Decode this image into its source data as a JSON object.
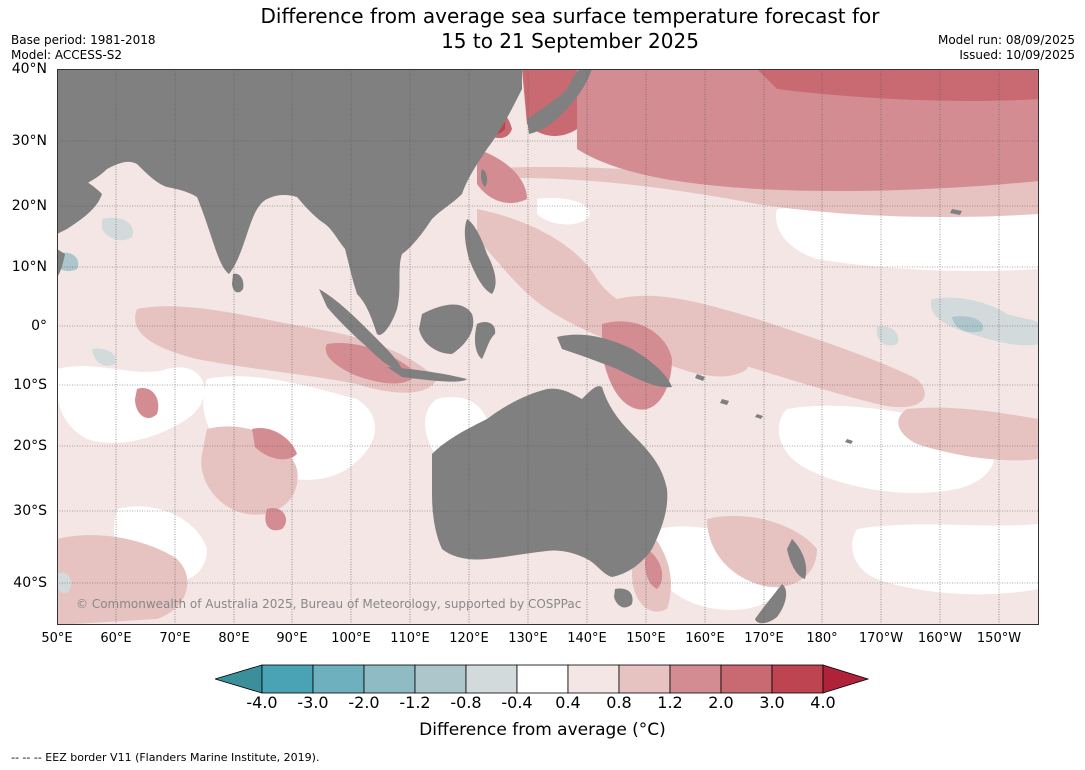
{
  "header": {
    "title_line1": "Difference from average sea surface temperature forecast for",
    "title_line2": "15 to 21 September 2025",
    "base_period": "Base period: 1981-2018",
    "model": "Model: ACCESS-S2",
    "model_run": "Model run: 08/09/2025",
    "issued": "Issued: 10/09/2025"
  },
  "map": {
    "lat_labels": [
      "40°N",
      "30°N",
      "20°N",
      "10°N",
      "0°",
      "10°S",
      "20°S",
      "30°S",
      "40°S"
    ],
    "lon_labels": [
      "50°E",
      "60°E",
      "70°E",
      "80°E",
      "90°E",
      "100°E",
      "110°E",
      "120°E",
      "130°E",
      "140°E",
      "150°E",
      "160°E",
      "170°E",
      "180°",
      "170°W",
      "160°W",
      "150°W"
    ],
    "copyright": "© Commonwealth of Australia 2025, Bureau of Meteorology, supported by COSPPac",
    "land_color": "#808080"
  },
  "colorbar": {
    "ticks": [
      "-4.0",
      "-3.0",
      "-2.0",
      "-1.2",
      "-0.8",
      "-0.4",
      "0.4",
      "0.8",
      "1.2",
      "2.0",
      "3.0",
      "4.0"
    ],
    "colors": [
      "#3a8f9a",
      "#4aa3b4",
      "#6eb0bd",
      "#8fbbc4",
      "#adc6cc",
      "#d3dadc",
      "#ffffff",
      "#f4e6e5",
      "#e6c3c1",
      "#d48c93",
      "#c96a72",
      "#be4452",
      "#b0223a"
    ],
    "label": "Difference from average (°C)"
  },
  "footnote": "-- -- -- EEZ border V11 (Flanders Marine Institute, 2019)."
}
